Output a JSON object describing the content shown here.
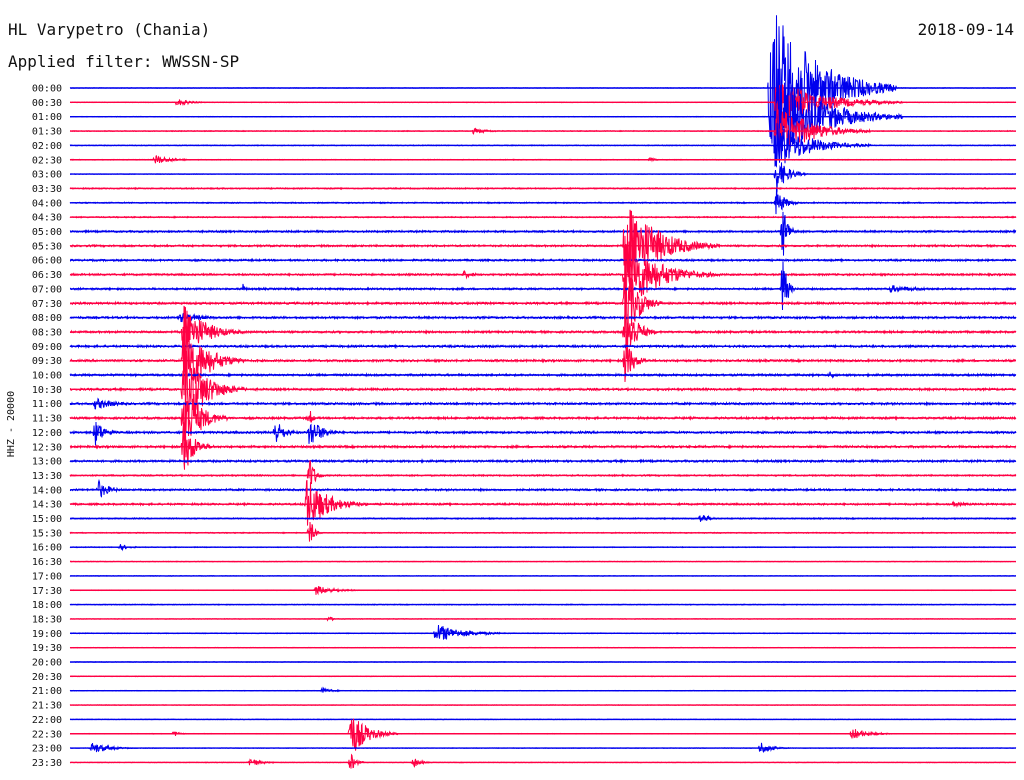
{
  "header": {
    "station": "HL Varypetro (Chania)",
    "filter": "Applied filter: WWSSN-SP",
    "date": "2018-09-14"
  },
  "chart_data": {
    "type": "line",
    "chart_kind": "helicorder",
    "channel_label": "HHZ - 20000",
    "row_labels": [
      "00:00",
      "00:30",
      "01:00",
      "01:30",
      "02:00",
      "02:30",
      "03:00",
      "03:30",
      "04:00",
      "04:30",
      "05:00",
      "05:30",
      "06:00",
      "06:30",
      "07:00",
      "07:30",
      "08:00",
      "08:30",
      "09:00",
      "09:30",
      "10:00",
      "10:30",
      "11:00",
      "11:30",
      "12:00",
      "12:30",
      "13:00",
      "13:30",
      "14:00",
      "14:30",
      "15:00",
      "15:30",
      "16:00",
      "16:30",
      "17:00",
      "17:30",
      "18:00",
      "18:30",
      "19:00",
      "19:30",
      "20:00",
      "20:30",
      "21:00",
      "21:30",
      "22:00",
      "22:30",
      "23:00",
      "23:30"
    ],
    "colors": {
      "even_rows": "#0000ee",
      "odd_rows": "#ff0044"
    },
    "x_unit": "minutes within row",
    "xlim": [
      0,
      30
    ],
    "noise_level": [
      0.3,
      0.3,
      0.3,
      0.4,
      0.4,
      0.4,
      0.3,
      0.6,
      0.6,
      0.6,
      0.9,
      0.9,
      0.9,
      0.9,
      0.9,
      1.0,
      1.0,
      1.0,
      1.0,
      1.0,
      1.0,
      1.0,
      1.0,
      1.0,
      1.0,
      1.0,
      1.0,
      0.7,
      0.9,
      0.9,
      0.6,
      0.5,
      0.4,
      0.3,
      0.3,
      0.3,
      0.4,
      0.3,
      0.4,
      0.3,
      0.3,
      0.3,
      0.3,
      0.3,
      0.3,
      0.3,
      0.3,
      0.3
    ],
    "events": [
      {
        "row": "00:30",
        "start_min": 3.4,
        "amplitude": 4,
        "duration_min": 1.2
      },
      {
        "row": "01:30",
        "start_min": 12.8,
        "amplitude": 3,
        "duration_min": 1.5
      },
      {
        "row": "02:30",
        "start_min": 2.7,
        "amplitude": 5,
        "duration_min": 1.5
      },
      {
        "row": "02:30",
        "start_min": 18.4,
        "amplitude": 3,
        "duration_min": 0.5
      },
      {
        "row": "00:00",
        "start_min": 22.2,
        "amplitude": 90,
        "duration_min": 4.0
      },
      {
        "row": "00:30",
        "start_min": 22.4,
        "amplitude": 25,
        "duration_min": 4.0
      },
      {
        "row": "01:00",
        "start_min": 22.4,
        "amplitude": 50,
        "duration_min": 4.0
      },
      {
        "row": "01:30",
        "start_min": 22.4,
        "amplitude": 30,
        "duration_min": 3.0
      },
      {
        "row": "02:00",
        "start_min": 22.4,
        "amplitude": 25,
        "duration_min": 3.0
      },
      {
        "row": "03:00",
        "start_min": 22.4,
        "amplitude": 20,
        "duration_min": 1.0
      },
      {
        "row": "04:00",
        "start_min": 22.4,
        "amplitude": 15,
        "duration_min": 0.8
      },
      {
        "row": "05:00",
        "start_min": 22.6,
        "amplitude": 30,
        "duration_min": 0.5
      },
      {
        "row": "07:00",
        "start_min": 22.6,
        "amplitude": 38,
        "duration_min": 0.4
      },
      {
        "row": "05:30",
        "start_min": 17.6,
        "amplitude": 48,
        "duration_min": 3.0
      },
      {
        "row": "06:30",
        "start_min": 17.6,
        "amplitude": 40,
        "duration_min": 3.0
      },
      {
        "row": "07:30",
        "start_min": 17.6,
        "amplitude": 45,
        "duration_min": 1.2
      },
      {
        "row": "08:30",
        "start_min": 17.6,
        "amplitude": 40,
        "duration_min": 1.0
      },
      {
        "row": "09:30",
        "start_min": 17.6,
        "amplitude": 25,
        "duration_min": 0.8
      },
      {
        "row": "06:30",
        "start_min": 12.5,
        "amplitude": 4,
        "duration_min": 1.0
      },
      {
        "row": "07:00",
        "start_min": 5.5,
        "amplitude": 7,
        "duration_min": 0.2
      },
      {
        "row": "08:00",
        "start_min": 3.5,
        "amplitude": 5,
        "duration_min": 2.5
      },
      {
        "row": "08:30",
        "start_min": 3.6,
        "amplitude": 30,
        "duration_min": 2.0
      },
      {
        "row": "09:30",
        "start_min": 3.6,
        "amplitude": 45,
        "duration_min": 2.0
      },
      {
        "row": "10:30",
        "start_min": 3.6,
        "amplitude": 45,
        "duration_min": 2.0
      },
      {
        "row": "11:30",
        "start_min": 3.6,
        "amplitude": 40,
        "duration_min": 1.5
      },
      {
        "row": "12:30",
        "start_min": 3.6,
        "amplitude": 30,
        "duration_min": 1.0
      },
      {
        "row": "11:00",
        "start_min": 0.8,
        "amplitude": 6,
        "duration_min": 2.0
      },
      {
        "row": "12:00",
        "start_min": 0.8,
        "amplitude": 14,
        "duration_min": 0.9
      },
      {
        "row": "12:00",
        "start_min": 6.5,
        "amplitude": 14,
        "duration_min": 0.9
      },
      {
        "row": "12:00",
        "start_min": 7.6,
        "amplitude": 16,
        "duration_min": 1.2
      },
      {
        "row": "11:30",
        "start_min": 7.6,
        "amplitude": 10,
        "duration_min": 0.3
      },
      {
        "row": "14:00",
        "start_min": 0.9,
        "amplitude": 10,
        "duration_min": 1.0
      },
      {
        "row": "14:30",
        "start_min": 7.5,
        "amplitude": 28,
        "duration_min": 2.0
      },
      {
        "row": "13:30",
        "start_min": 7.6,
        "amplitude": 20,
        "duration_min": 0.5
      },
      {
        "row": "15:30",
        "start_min": 7.6,
        "amplitude": 16,
        "duration_min": 0.4
      },
      {
        "row": "15:00",
        "start_min": 20.0,
        "amplitude": 6,
        "duration_min": 0.8
      },
      {
        "row": "16:00",
        "start_min": 1.6,
        "amplitude": 3,
        "duration_min": 1.0
      },
      {
        "row": "17:30",
        "start_min": 7.8,
        "amplitude": 5,
        "duration_min": 1.8
      },
      {
        "row": "18:30",
        "start_min": 8.2,
        "amplitude": 3,
        "duration_min": 0.5
      },
      {
        "row": "19:00",
        "start_min": 11.6,
        "amplitude": 10,
        "duration_min": 2.5
      },
      {
        "row": "21:00",
        "start_min": 8.0,
        "amplitude": 3,
        "duration_min": 1.0
      },
      {
        "row": "22:30",
        "start_min": 8.9,
        "amplitude": 24,
        "duration_min": 1.5
      },
      {
        "row": "23:30",
        "start_min": 8.9,
        "amplitude": 10,
        "duration_min": 0.5
      },
      {
        "row": "22:30",
        "start_min": 3.3,
        "amplitude": 3,
        "duration_min": 0.6
      },
      {
        "row": "22:30",
        "start_min": 24.8,
        "amplitude": 6,
        "duration_min": 1.5
      },
      {
        "row": "23:00",
        "start_min": 0.7,
        "amplitude": 6,
        "duration_min": 1.5
      },
      {
        "row": "23:00",
        "start_min": 21.9,
        "amplitude": 7,
        "duration_min": 1.0
      },
      {
        "row": "23:30",
        "start_min": 5.7,
        "amplitude": 5,
        "duration_min": 1.0
      },
      {
        "row": "23:30",
        "start_min": 10.9,
        "amplitude": 6,
        "duration_min": 0.6
      },
      {
        "row": "10:00",
        "start_min": 24.1,
        "amplitude": 4,
        "duration_min": 0.5
      },
      {
        "row": "07:00",
        "start_min": 26.0,
        "amplitude": 4,
        "duration_min": 3.0
      },
      {
        "row": "14:30",
        "start_min": 28.0,
        "amplitude": 3,
        "duration_min": 1.5
      }
    ]
  }
}
